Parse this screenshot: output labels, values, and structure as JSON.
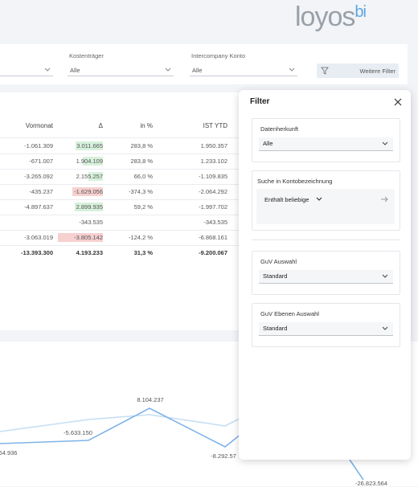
{
  "header": {
    "logo": {
      "word": "loyos",
      "suffix": "bi"
    }
  },
  "filter_bar": {
    "fields": [
      {
        "label": "Kostenträger",
        "value": "Alle"
      },
      {
        "label": "Intercompany Konto",
        "value": "Alle"
      }
    ],
    "more_button": "Weitere Filter"
  },
  "table": {
    "columns": [
      "Vormonat",
      "Δ",
      "in %",
      "IST YTD"
    ],
    "rows": [
      [
        "-1.061.309",
        "3.011.665",
        "283,8 %",
        "1.950.357"
      ],
      [
        "-671.007",
        "1.904.109",
        "283,8 %",
        "1.233.102"
      ],
      [
        "-3.265.092",
        "2.155.257",
        "66,0 %",
        "-1.109.835"
      ],
      [
        "-435.237",
        "-1.629.056",
        "-374,3 %",
        "-2.064.292"
      ],
      [
        "-4.897.637",
        "2.899.935",
        "59,2 %",
        "-1.997.702"
      ],
      [
        null,
        "-343.535",
        null,
        "-343.535"
      ],
      [
        "-3.063.019",
        "-3.805.142",
        "-124,2 %",
        "-6.868.161"
      ],
      [
        "-13.393.300",
        "4.193.233",
        "31,3 %",
        "-9.200.067"
      ]
    ]
  },
  "chart": {
    "labels": [
      "64.936",
      "-5.633.150",
      "8.104.237",
      "-8.292.57",
      "-26.823.564"
    ]
  },
  "filter_panel": {
    "title": "Filter",
    "sections": [
      {
        "label": "Datenherkunft",
        "value": "Alle"
      },
      {
        "label": "Suche in Kontobezeichnung",
        "value": "Enthält beliebige"
      },
      {
        "label": "GuV Auswahl",
        "value": "Standard"
      },
      {
        "label": "GuV Ebenen Auswahl",
        "value": "Standard"
      }
    ]
  }
}
